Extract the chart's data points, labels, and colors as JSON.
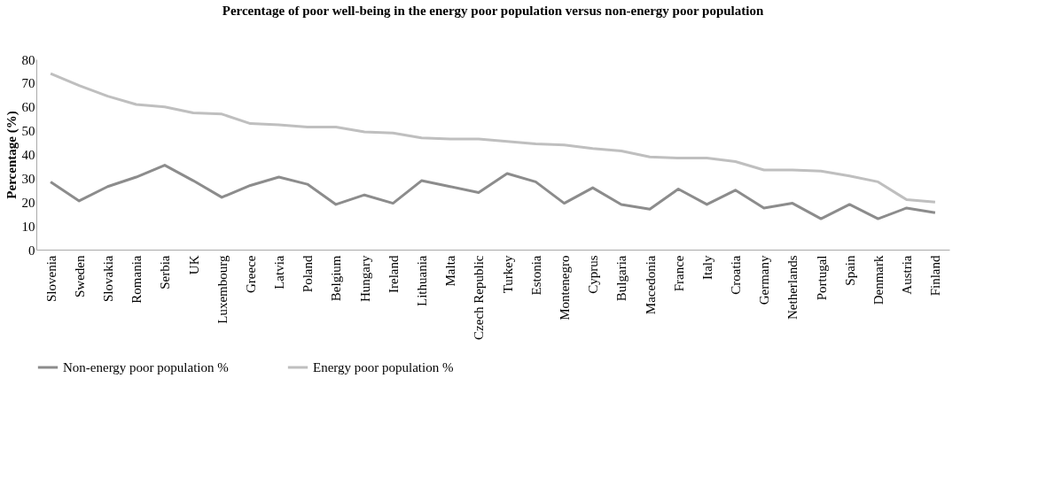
{
  "chart_data": {
    "type": "line",
    "title": "Percentage of poor well-being in the energy poor population versus non-energy poor population",
    "ylabel": "Percentage (%)",
    "categories": [
      "Slovenia",
      "Sweden",
      "Slovakia",
      "Romania",
      "Serbia",
      "UK",
      "Luxembourg",
      "Greece",
      "Latvia",
      "Poland",
      "Belgium",
      "Hungary",
      "Ireland",
      "Lithuania",
      "Malta",
      "Czech Republic",
      "Turkey",
      "Estonia",
      "Montenegro",
      "Cyprus",
      "Bulgaria",
      "Macedonia",
      "France",
      "Italy",
      "Croatia",
      "Germany",
      "Netherlands",
      "Portugal",
      "Spain",
      "Denmark",
      "Austria",
      "Finland"
    ],
    "series": [
      {
        "name": "Non-energy poor population %",
        "color": "#8c8c8c",
        "values": [
          28.5,
          20.5,
          26.5,
          30.5,
          35.5,
          29,
          22,
          27,
          30.5,
          27.5,
          19,
          23,
          19.5,
          29,
          26.5,
          24,
          32,
          28.5,
          19.5,
          26,
          19,
          17,
          25.5,
          19,
          25,
          17.5,
          19.5,
          13,
          19,
          13,
          17.5,
          15.5
        ]
      },
      {
        "name": "Energy poor population %",
        "color": "#bfbfbf",
        "values": [
          74,
          69,
          64.5,
          61,
          60,
          57.5,
          57,
          53,
          52.5,
          51.5,
          51.5,
          49.5,
          49,
          47,
          46.5,
          46.5,
          45.5,
          44.5,
          44,
          42.5,
          41.5,
          39,
          38.5,
          38.5,
          37,
          33.5,
          33.5,
          33,
          31,
          28.5,
          21,
          20
        ]
      }
    ],
    "ylim": [
      0,
      80
    ],
    "yticks": [
      0,
      10,
      20,
      30,
      40,
      50,
      60,
      70,
      80
    ],
    "grid": false,
    "legend": "bottom",
    "marker": "none",
    "line_style": "solid"
  }
}
